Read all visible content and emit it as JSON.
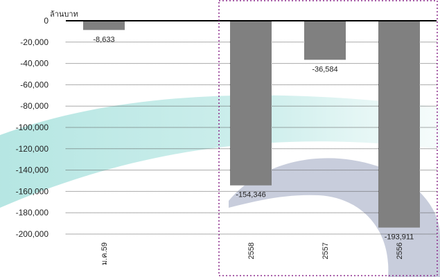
{
  "chart_data": {
    "type": "bar",
    "ylabel": "ล้านบาท",
    "categories": [
      "ม.ค.59",
      "2558",
      "2557",
      "2556"
    ],
    "values": [
      -8633,
      -154346,
      -36584,
      -193911
    ],
    "data_labels": [
      "-8,633",
      "-154,346",
      "-36,584",
      "-193,911"
    ],
    "ylim": [
      -200000,
      0
    ],
    "yticks": [
      0,
      -20000,
      -40000,
      -60000,
      -80000,
      -100000,
      -120000,
      -140000,
      -160000,
      -180000,
      -200000
    ],
    "ytick_labels": [
      "0",
      "-20,000",
      "-40,000",
      "-60,000",
      "-80,000",
      "-100,000",
      "-120,000",
      "-140,000",
      "-160,000",
      "-180,000",
      "-200,000"
    ],
    "grid": true,
    "highlight_categories": [
      "2558",
      "2557",
      "2556"
    ],
    "colors": {
      "bar": "#808080",
      "grid": "#555555",
      "axis": "#000000",
      "highlight_border": "#8b2a8b",
      "background_teal": "#5cc8c0",
      "background_navy": "#3a4a80"
    }
  }
}
